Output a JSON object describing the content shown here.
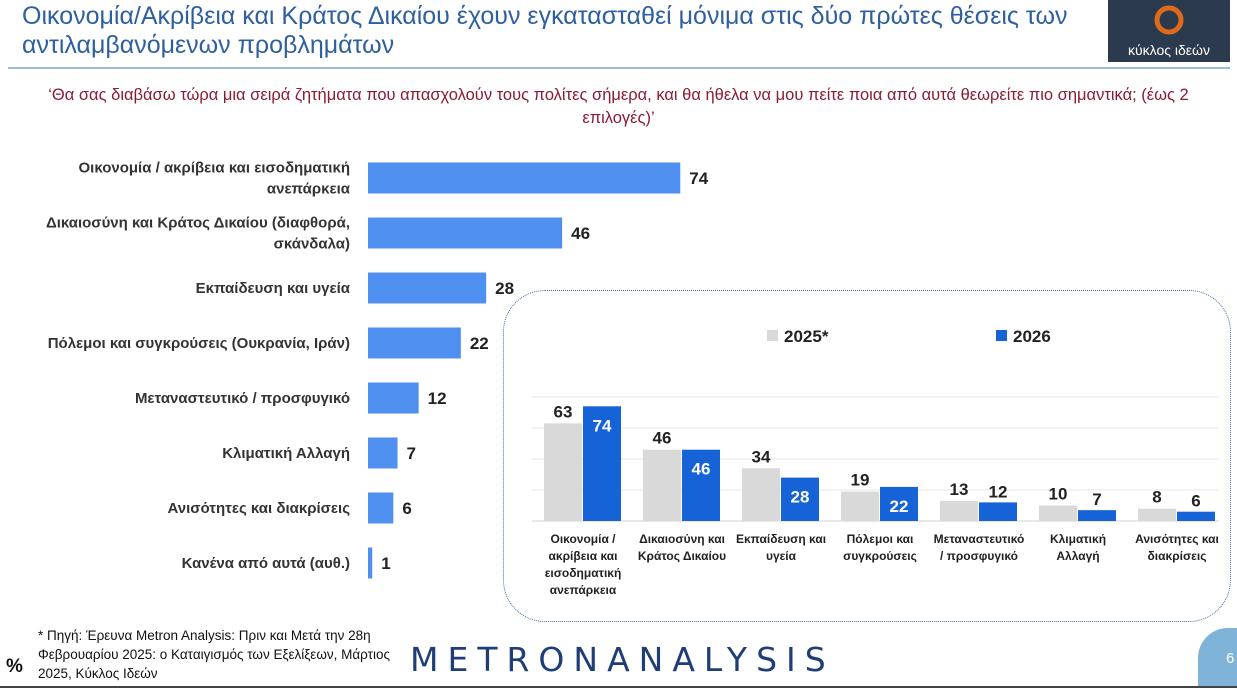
{
  "header": {
    "title": "Οικονομία/Ακρίβεια και Κράτος Δικαίου έχουν εγκατασταθεί μόνιμα στις δύο πρώτες θέσεις των αντιλαμβανόμενων προβλημάτων",
    "logo_text": "κύκλος ιδεών"
  },
  "question": "‘Θα σας διαβάσω τώρα μια σειρά ζητήματα που απασχολούν τους πολίτες σήμερα, και θα ήθελα να μου πείτε ποια από αυτά θεωρείτε πιο σημαντικά; (έως 2 επιλογές)’",
  "colors": {
    "primary_bar": "#4f8ff0",
    "series_2025": "#d9d9d9",
    "series_2026": "#1663d8",
    "question_text": "#8b1a35",
    "title_text": "#2e5f9e"
  },
  "chart_data": [
    {
      "type": "bar",
      "orientation": "horizontal",
      "categories": [
        [
          "Οικονομία / ακρίβεια και εισοδηματική",
          "ανεπάρκεια"
        ],
        [
          "Δικαιοσύνη και Κράτος Δικαίου (διαφθορά,",
          "σκάνδαλα)"
        ],
        [
          "Εκπαίδευση και υγεία"
        ],
        [
          "Πόλεμοι και συγκρούσεις (Ουκρανία, Ιράν)"
        ],
        [
          "Μεταναστευτικό / προσφυγικό"
        ],
        [
          "Κλιματική Αλλαγή"
        ],
        [
          "Ανισότητες και διακρίσεις"
        ],
        [
          "Κανένα από αυτά (αυθ.)"
        ]
      ],
      "values": [
        74,
        46,
        28,
        22,
        12,
        7,
        6,
        1
      ],
      "xlim": [
        0,
        100
      ]
    },
    {
      "type": "bar",
      "orientation": "vertical",
      "legend_position": "top",
      "categories": [
        [
          "Οικονομία /",
          "ακρίβεια και",
          "εισοδηματική",
          "ανεπάρκεια"
        ],
        [
          "Δικαιοσύνη και",
          "Κράτος Δικαίου"
        ],
        [
          "Εκπαίδευση και",
          "υγεία"
        ],
        [
          "Πόλεμοι και",
          "συγκρούσεις"
        ],
        [
          "Μεταναστευτικό",
          "/ προσφυγικό"
        ],
        [
          "Κλιματική",
          "Αλλαγή"
        ],
        [
          "Ανισότητες και",
          "διακρίσεις"
        ]
      ],
      "series": [
        {
          "name": "2025*",
          "values": [
            63,
            46,
            34,
            19,
            13,
            10,
            8
          ]
        },
        {
          "name": "2026",
          "values": [
            74,
            46,
            28,
            22,
            12,
            7,
            6
          ]
        }
      ],
      "ylim": [
        0,
        80
      ],
      "grid": true
    }
  ],
  "footer": {
    "source": "* Πηγή: Έρευνα Metron Analysis: Πριν και Μετά την 28η Φεβρουαρίου 2025: ο Καταιγισμός των Εξελίξεων, Μάρτιος 2025, Κύκλος Ιδεών",
    "percent_symbol": "%",
    "brand": "METRONANALYSIS",
    "page_number": "6"
  }
}
